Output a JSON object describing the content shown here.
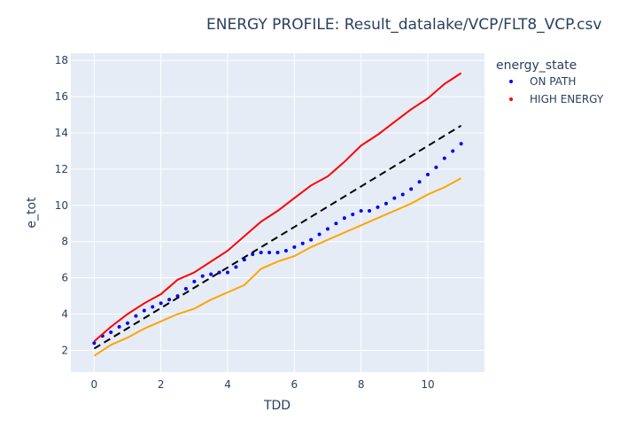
{
  "chart_data": {
    "type": "scatter",
    "title": "ENERGY PROFILE: Result_datalake/VCP/FLT8_VCP.csv",
    "xlabel": "TDD",
    "ylabel": "e_tot",
    "xlim": [
      -0.7,
      11.7
    ],
    "ylim": [
      0.8,
      18.4
    ],
    "xticks": [
      0,
      2,
      4,
      6,
      8,
      10
    ],
    "yticks": [
      2,
      4,
      6,
      8,
      10,
      12,
      14,
      16,
      18
    ],
    "grid": true,
    "legend": {
      "title": "energy_state",
      "placement": "top-right"
    },
    "series": [
      {
        "name": "ON PATH",
        "mode": "markers",
        "color": "#0000ff",
        "x": [
          0.0,
          0.25,
          0.5,
          0.75,
          1.0,
          1.25,
          1.5,
          1.75,
          2.0,
          2.25,
          2.5,
          2.75,
          3.0,
          3.25,
          3.5,
          3.75,
          4.0,
          4.25,
          4.5,
          4.75,
          5.0,
          5.25,
          5.5,
          5.75,
          6.0,
          6.25,
          6.5,
          6.75,
          7.0,
          7.25,
          7.5,
          7.75,
          8.0,
          8.25,
          8.5,
          8.75,
          9.0,
          9.25,
          9.5,
          9.75,
          10.0,
          10.25,
          10.5,
          10.75,
          11.0
        ],
        "y": [
          2.4,
          2.8,
          3.0,
          3.3,
          3.5,
          3.9,
          4.2,
          4.4,
          4.6,
          4.8,
          5.0,
          5.4,
          5.8,
          6.1,
          6.2,
          6.3,
          6.3,
          6.6,
          7.0,
          7.3,
          7.4,
          7.4,
          7.4,
          7.5,
          7.7,
          7.9,
          8.1,
          8.4,
          8.7,
          9.0,
          9.3,
          9.5,
          9.7,
          9.7,
          9.9,
          10.1,
          10.4,
          10.6,
          10.9,
          11.3,
          11.7,
          12.1,
          12.6,
          13.0,
          13.4
        ],
        "visible_in_legend": true
      },
      {
        "name": "HIGH ENERGY",
        "mode": "lines",
        "color": "#ff0000",
        "x": [
          0.0,
          0.5,
          1.0,
          1.5,
          2.0,
          2.5,
          3.0,
          3.5,
          4.0,
          4.5,
          5.0,
          5.5,
          6.0,
          6.5,
          7.0,
          7.5,
          8.0,
          8.5,
          9.0,
          9.5,
          10.0,
          10.5,
          11.0
        ],
        "y": [
          2.5,
          3.3,
          4.0,
          4.6,
          5.1,
          5.9,
          6.3,
          6.9,
          7.5,
          8.3,
          9.1,
          9.7,
          10.4,
          11.1,
          11.6,
          12.4,
          13.3,
          13.9,
          14.6,
          15.3,
          15.9,
          16.7,
          17.3
        ],
        "visible_in_legend": true
      },
      {
        "mode": "lines",
        "dash": "dash",
        "color": "#000000",
        "x": [
          0.0,
          11.0
        ],
        "y": [
          2.1,
          14.4
        ],
        "visible_in_legend": false
      },
      {
        "mode": "lines",
        "color": "#ffa500",
        "x": [
          0.0,
          0.5,
          1.0,
          1.5,
          2.0,
          2.5,
          3.0,
          3.5,
          4.0,
          4.5,
          5.0,
          5.5,
          6.0,
          6.5,
          7.0,
          7.5,
          8.0,
          8.5,
          9.0,
          9.5,
          10.0,
          10.5,
          11.0
        ],
        "y": [
          1.7,
          2.3,
          2.7,
          3.2,
          3.6,
          4.0,
          4.3,
          4.8,
          5.2,
          5.6,
          6.5,
          6.9,
          7.2,
          7.7,
          8.1,
          8.5,
          8.9,
          9.3,
          9.7,
          10.1,
          10.6,
          11.0,
          11.5
        ],
        "visible_in_legend": false
      }
    ]
  }
}
